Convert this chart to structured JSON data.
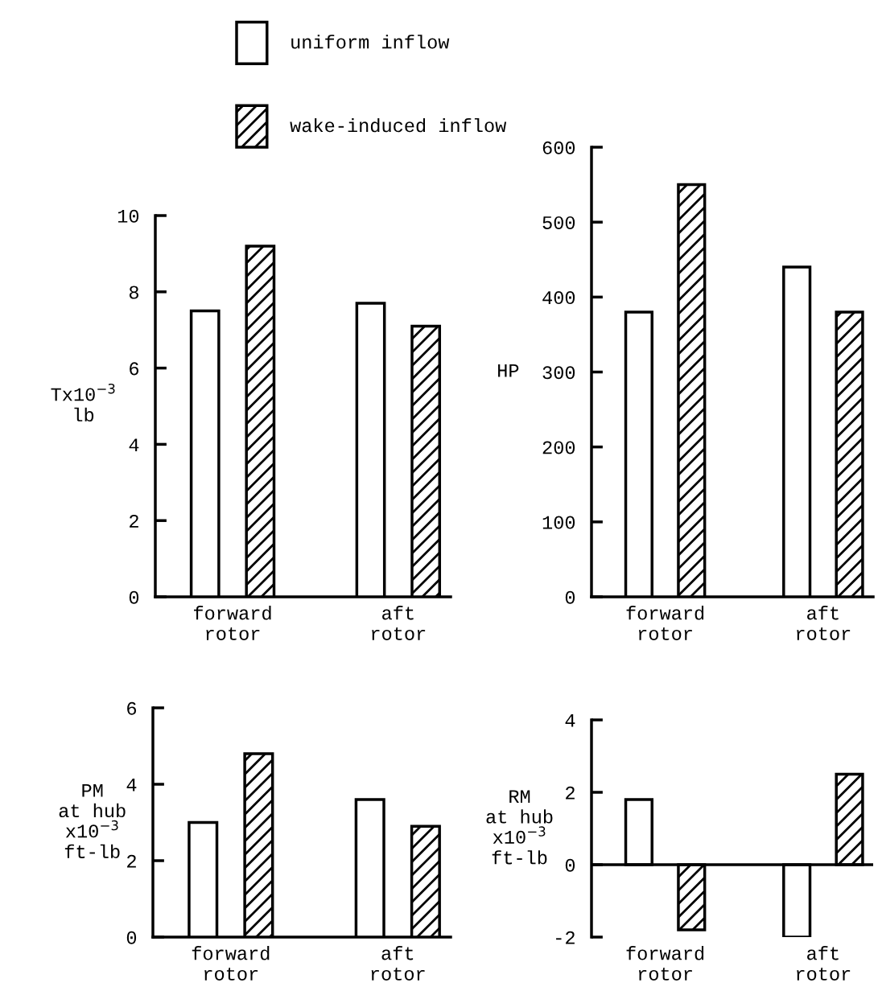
{
  "chart_data": [
    {
      "type": "bar",
      "ylabel": "Tx10$^{−3}$\nlb",
      "categories": [
        "forward\nrotor",
        "aft\nrotor"
      ],
      "ylim": [
        0,
        10
      ],
      "yticks": [
        0,
        2,
        4,
        6,
        8,
        10
      ],
      "legend": "top",
      "grid": false,
      "series": [
        {
          "name": "uniform inflow",
          "color": "#ffffff",
          "values": [
            7.5,
            7.7
          ]
        },
        {
          "name": "wake-induced inflow",
          "color": "#000000",
          "values": [
            9.2,
            7.1
          ]
        }
      ]
    },
    {
      "type": "bar",
      "ylabel": "HP",
      "categories": [
        "forward\nrotor",
        "aft\nrotor"
      ],
      "ylim": [
        0,
        600
      ],
      "yticks": [
        0,
        100,
        200,
        300,
        400,
        500,
        600
      ],
      "grid": false,
      "series": [
        {
          "color": "#ffffff",
          "values": [
            380,
            440
          ]
        },
        {
          "color": "#000000",
          "values": [
            550,
            380
          ]
        }
      ]
    },
    {
      "type": "bar",
      "ylabel": "PM\nat hub\nx10$^{−3}$\nft-lb",
      "categories": [
        "forward\nrotor",
        "aft\nrotor"
      ],
      "ylim": [
        0,
        6
      ],
      "yticks": [
        0,
        2,
        4,
        6
      ],
      "grid": false,
      "series": [
        {
          "color": "#ffffff",
          "values": [
            3.0,
            3.6
          ]
        },
        {
          "color": "#000000",
          "values": [
            4.8,
            2.9
          ]
        }
      ]
    },
    {
      "type": "bar",
      "ylabel": "RM\nat hub\nx10$^{−3}$\nft-lb",
      "categories": [
        "forward\nrotor",
        "aft\nrotor"
      ],
      "ylim": [
        -2,
        4
      ],
      "yticks": [
        -2,
        0,
        2,
        4
      ],
      "grid": false,
      "ref_lines": [
        {
          "axis": "y",
          "value": 0,
          "color": "#000000"
        }
      ],
      "series": [
        {
          "color": "#ffffff",
          "values": [
            1.8,
            -2.0
          ]
        },
        {
          "color": "#000000",
          "values": [
            -1.8,
            2.5
          ]
        }
      ]
    }
  ]
}
